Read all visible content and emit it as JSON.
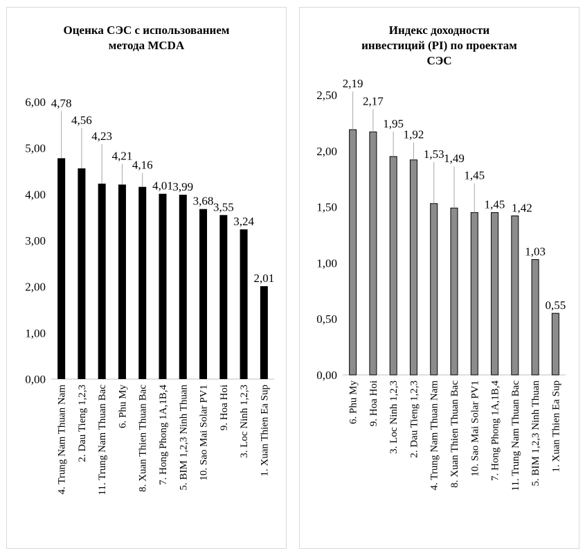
{
  "chart_data": [
    {
      "type": "bar",
      "title_lines": [
        "Оценка СЭС с использованием",
        "метода MCDA"
      ],
      "categories": [
        "4. Trung Nam Thuan Nam",
        "2. Dau Tieng 1,2,3",
        "11. Trung Nam Thuan Bac",
        "6. Phu My",
        "8. Xuan Thien Thuan Bac",
        "7. Hong Phong 1A,1B,4",
        "5. BIM 1,2,3 Ninh Thuan",
        "10. Sao Mai Solar PV1",
        "9. Hoa Hoi",
        "3. Loc Ninh 1,2,3",
        "1. Xuan Thien Ea Sup"
      ],
      "values": [
        4.78,
        4.56,
        4.23,
        4.21,
        4.16,
        4.01,
        3.99,
        3.68,
        3.55,
        3.24,
        2.01
      ],
      "value_labels": [
        "4,78",
        "4,56",
        "4,23",
        "4,21",
        "4,16",
        "4,01",
        "3,99",
        "3,68",
        "3,55",
        "3,24",
        "2,01"
      ],
      "yticks": [
        "0,00",
        "1,00",
        "2,00",
        "3,00",
        "4,00",
        "5,00",
        "6,00"
      ],
      "ylim": [
        0,
        6
      ],
      "bar_color": "#000000",
      "grid": false,
      "legend": "none"
    },
    {
      "type": "bar",
      "title_lines": [
        "Индекс доходности",
        "инвестиций (PI) по проектам",
        "СЭС"
      ],
      "categories": [
        "6. Phu My",
        "9. Hoa Hoi",
        "3. Loc Ninh 1,2,3",
        "2. Dau Tieng 1,2,3",
        "4. Trung Nam Thuan Nam",
        "8. Xuan Thien Thuan Bac",
        "10. Sao Mai Solar PV1",
        "7. Hong Phong 1A,1B,4",
        "11. Trung Nam Thuan Bac",
        "5. BIM 1,2,3 Ninh Thuan",
        "1. Xuan Thien Ea Sup"
      ],
      "values": [
        2.19,
        2.17,
        1.95,
        1.92,
        1.53,
        1.49,
        1.45,
        1.45,
        1.42,
        1.03,
        0.55
      ],
      "value_labels": [
        "2,19",
        "2,17",
        "1,95",
        "1,92",
        "1,53",
        "1,49",
        "1,45",
        "1,45",
        "1,42",
        "1,03",
        "0,55"
      ],
      "yticks": [
        "0,00",
        "0,50",
        "1,00",
        "1,50",
        "2,00",
        "2,50"
      ],
      "ylim": [
        0,
        2.5
      ],
      "bar_color": "#8c8c8c",
      "grid": false,
      "legend": "none"
    }
  ]
}
